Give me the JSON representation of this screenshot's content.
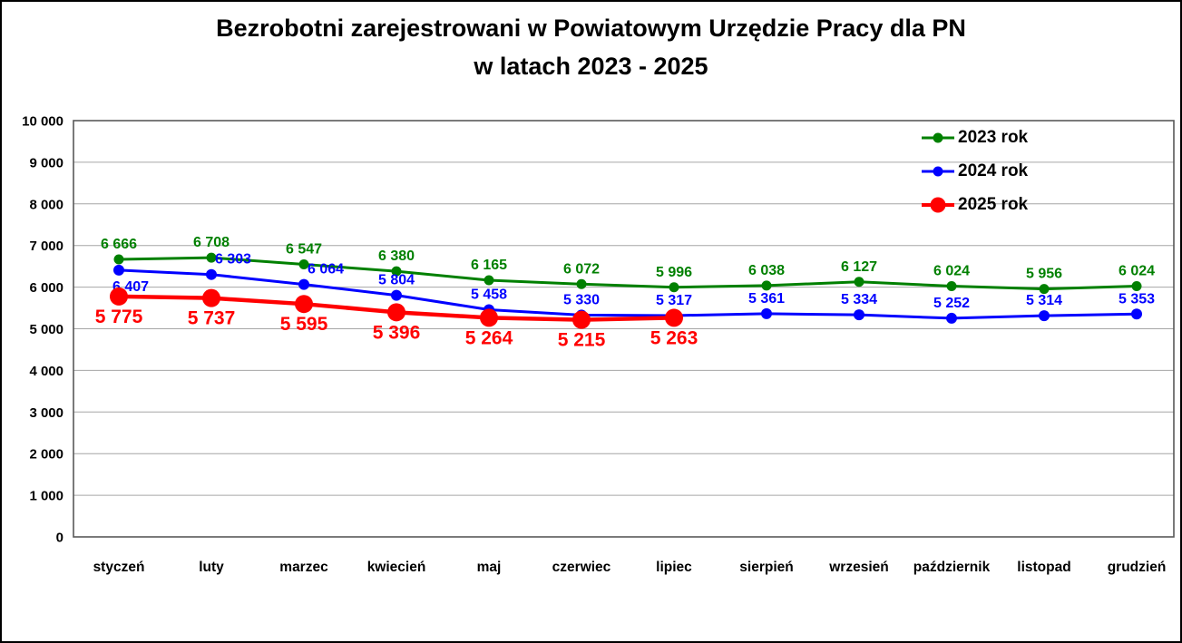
{
  "page": {
    "background": "#FFFFFF",
    "border_color": "#000000"
  },
  "chart_data": {
    "type": "line",
    "title_line1": "Bezrobotni zarejestrowani w Powiatowym Urzędzie Pracy dla PN",
    "title_line2": "w latach 2023 - 2025",
    "categories": [
      "styczeń",
      "luty",
      "marzec",
      "kwiecień",
      "maj",
      "czerwiec",
      "lipiec",
      "sierpień",
      "wrzesień",
      "październik",
      "listopad",
      "grudzień"
    ],
    "series": [
      {
        "name": "2023 rok",
        "color": "#008000",
        "values": [
          6666,
          6708,
          6547,
          6380,
          6165,
          6072,
          5996,
          6038,
          6127,
          6024,
          5956,
          6024
        ]
      },
      {
        "name": "2024 rok",
        "color": "#0000FF",
        "values": [
          6407,
          6303,
          6064,
          5804,
          5458,
          5330,
          5317,
          5361,
          5334,
          5252,
          5314,
          5353
        ]
      },
      {
        "name": "2025 rok",
        "color": "#FF0000",
        "values": [
          5775,
          5737,
          5595,
          5396,
          5264,
          5215,
          5263
        ]
      }
    ],
    "ylim": [
      0,
      10000
    ],
    "y_step": 1000,
    "y_tick_labels": [
      "0",
      "1 000",
      "2 000",
      "3 000",
      "4 000",
      "5 000",
      "6 000",
      "7 000",
      "8 000",
      "9 000",
      "10 000"
    ],
    "grid": true,
    "legend_position": "top-right",
    "number_format": "space-thousands",
    "gridline_color": "#A6A6A6",
    "frame_color": "#595959",
    "label_color": "#000000"
  }
}
